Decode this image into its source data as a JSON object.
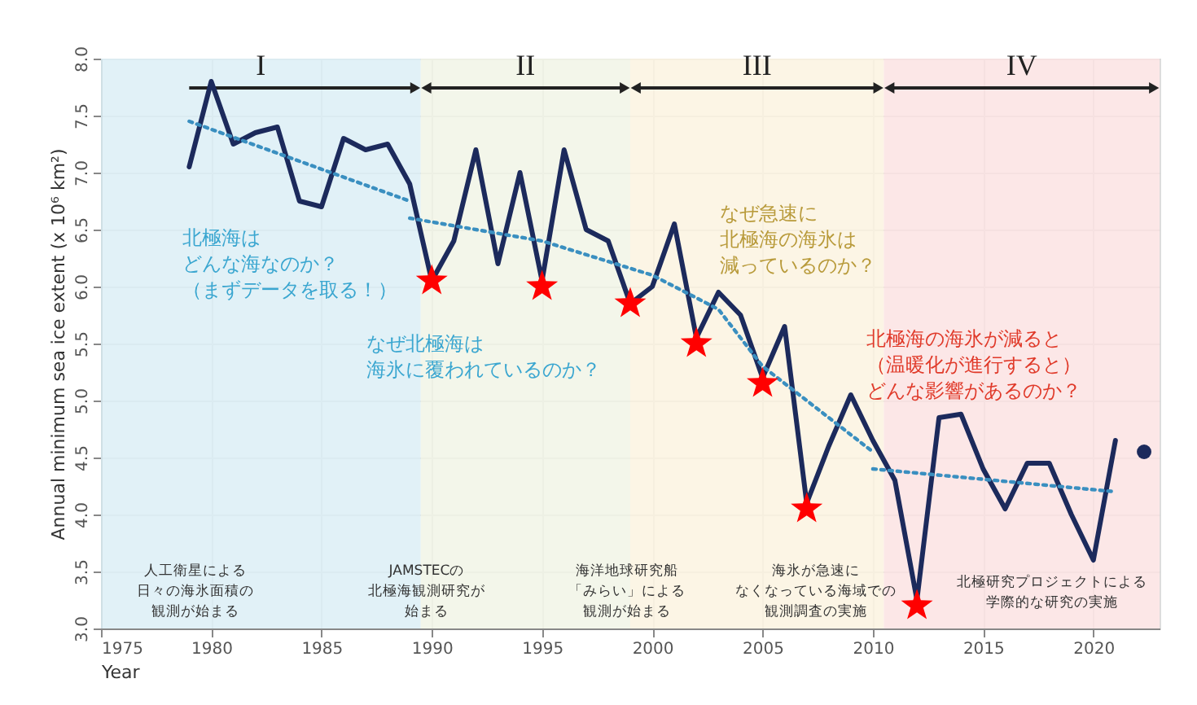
{
  "chart_data": {
    "type": "line",
    "xlabel": "Year",
    "ylabel": "Annual minimum sea ice extent (x 10⁶ km²)",
    "xlim": [
      1975,
      2023
    ],
    "ylim": [
      3,
      8
    ],
    "xticks": [
      1975,
      1980,
      1985,
      1990,
      1995,
      2000,
      2005,
      2010,
      2015,
      2020
    ],
    "yticks": [
      {
        "value": 3,
        "label": "3.0"
      },
      {
        "value": 3.5,
        "label": "3.5"
      },
      {
        "value": 4,
        "label": "4.0"
      },
      {
        "value": 4.5,
        "label": "4.5"
      },
      {
        "value": 5,
        "label": "5.0"
      },
      {
        "value": 5.5,
        "label": "5.5"
      },
      {
        "value": 6,
        "label": "6.0"
      },
      {
        "value": 6.5,
        "label": "6.5"
      },
      {
        "value": 7,
        "label": "7.0"
      },
      {
        "value": 7.5,
        "label": "7.5"
      },
      {
        "value": 8,
        "label": "8.0"
      }
    ],
    "grid": true,
    "series": [
      {
        "type": "line",
        "color": "#1c2a5c",
        "marker": "none",
        "line_style": "solid",
        "x": [
          1979,
          1980,
          1981,
          1982,
          1983,
          1984,
          1985,
          1986,
          1987,
          1988,
          1989,
          1990,
          1991,
          1992,
          1993,
          1994,
          1995,
          1996,
          1997,
          1998,
          1999,
          2000,
          2001,
          2002,
          2003,
          2004,
          2005,
          2006,
          2007,
          2008,
          2009,
          2010,
          2011,
          2012,
          2013,
          2014,
          2015,
          2016,
          2017,
          2018,
          2019,
          2020,
          2021
        ],
        "values": [
          7.05,
          7.8,
          7.25,
          7.35,
          7.4,
          6.75,
          6.7,
          7.3,
          7.2,
          7.25,
          6.9,
          6.05,
          6.4,
          7.2,
          6.2,
          7.0,
          6.05,
          7.2,
          6.5,
          6.4,
          5.85,
          6.0,
          6.55,
          5.55,
          5.95,
          5.75,
          5.2,
          5.65,
          4.1,
          4.6,
          5.05,
          4.65,
          4.3,
          3.25,
          4.85,
          4.88,
          4.4,
          4.05,
          4.45,
          4.45,
          4.0,
          3.6,
          4.65
        ]
      },
      {
        "type": "line",
        "color": "#3a8fc0",
        "marker": "none",
        "line_style": "dotted",
        "x": [
          1979,
          1989
        ],
        "values": [
          7.45,
          6.75
        ]
      },
      {
        "type": "line",
        "color": "#3a8fc0",
        "marker": "none",
        "line_style": "dotted",
        "x": [
          1989,
          1995,
          2000,
          2003,
          2005,
          2010
        ],
        "values": [
          6.6,
          6.4,
          6.1,
          5.8,
          5.3,
          4.55
        ]
      },
      {
        "type": "line",
        "color": "#3a8fc0",
        "marker": "none",
        "line_style": "dotted",
        "x": [
          2010,
          2021
        ],
        "values": [
          4.4,
          4.2
        ]
      },
      {
        "type": "scatter",
        "color": "#ff0000",
        "marker": "star",
        "x": [
          1990,
          1995,
          1999,
          2002,
          2005,
          2007,
          2012
        ],
        "values": [
          6.05,
          6.0,
          5.85,
          5.5,
          5.15,
          4.05,
          3.2
        ]
      },
      {
        "type": "scatter",
        "color": "#1c2a5c",
        "marker": "circle",
        "x": [
          2022.3
        ],
        "values": [
          4.55
        ]
      }
    ],
    "bands": [
      {
        "axis": "x",
        "from": 1975,
        "to": 1989.5,
        "label": "I",
        "color": "#dceef6"
      },
      {
        "axis": "x",
        "from": 1989.5,
        "to": 1999,
        "label": "II",
        "color": "#f1f4e6"
      },
      {
        "axis": "x",
        "from": 1999,
        "to": 2010.5,
        "label": "III",
        "color": "#fbf3e0"
      },
      {
        "axis": "x",
        "from": 2010.5,
        "to": 2023,
        "label": "IV",
        "color": "#fbe3e3"
      }
    ],
    "annotations": [
      "北極海はどんな海なのか？（まずデータを取る！）",
      "なぜ北極海は海氷に覆われているのか？",
      "なぜ急速に北極海の海氷は減っているのか？",
      "北極海の海氷が減ると（温暖化が進行すると）どんな影響があるのか？",
      "人工衛星による日々の海氷面積の観測が始まる",
      "JAMSTECの北極海観測研究が始まる",
      "海洋地球研究船「みらい」による観測が始まる",
      "海氷が急速になくなっている海域での観測調査の実施",
      "北極研究プロジェクトによる学際的な研究の実施"
    ]
  }
}
